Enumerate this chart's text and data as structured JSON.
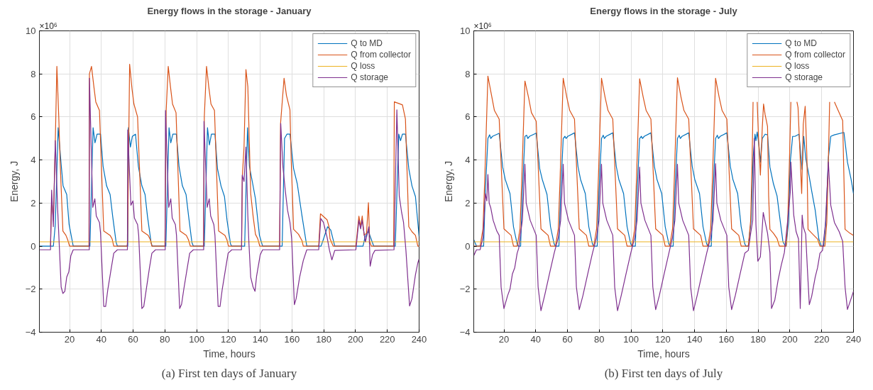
{
  "chart_data": [
    {
      "type": "line",
      "title": "Energy flows in the storage - January",
      "xlabel": "Time, hours",
      "ylabel": "Energy, J",
      "annotations": [
        "×10⁶",
        "(a) First ten days of January"
      ],
      "xlim": [
        1,
        240
      ],
      "xticks": [
        20,
        40,
        60,
        80,
        100,
        120,
        140,
        160,
        180,
        200,
        220,
        240
      ],
      "ylim": [
        -4,
        10
      ],
      "yticks": [
        -4,
        -2,
        0,
        2,
        4,
        6,
        8,
        10
      ],
      "grid": true,
      "legend": "top right",
      "series": [
        {
          "name": "Q to MD",
          "color": "#0072bd",
          "x": [
            1,
            9.8,
            11,
            12.8,
            14.7,
            15.9,
            18.2,
            19.7,
            22.3,
            32.8,
            34.8,
            36,
            37.3,
            39.5,
            41.1,
            43.3,
            45.5,
            47.1,
            49.3,
            50.1,
            56.6,
            57,
            58.3,
            59.5,
            61.5,
            63.3,
            65.5,
            67.5,
            69,
            71.3,
            72,
            80.6,
            82.6,
            83.7,
            85,
            87.2,
            88.9,
            91,
            93.3,
            94.9,
            97,
            97.9,
            104.8,
            106.8,
            108,
            109.3,
            111.5,
            113.1,
            115.3,
            117.5,
            119.1,
            121.3,
            122,
            130.2,
            132,
            133.2,
            135,
            137,
            139.5,
            141.5,
            153.8,
            155.3,
            156.8,
            158.7,
            161,
            163.3,
            166.3,
            169.3,
            178.3,
            182.4,
            184.4,
            186.9,
            204.7,
            205.9,
            208,
            211.4,
            225,
            227.2,
            228.3,
            229.5,
            231.4,
            233.5,
            235.5,
            237.7,
            240
          ],
          "values": [
            0,
            0,
            1.0,
            5.5,
            3.8,
            2.8,
            2.4,
            1.0,
            0,
            0,
            5.5,
            4.8,
            5.2,
            5.2,
            3.7,
            2.8,
            2.4,
            1.4,
            0.17,
            0,
            0,
            5.5,
            4.6,
            5.1,
            5.2,
            3.7,
            2.8,
            2.4,
            1.4,
            0.17,
            0,
            0,
            5.5,
            4.8,
            5.2,
            5.2,
            3.7,
            2.8,
            2.4,
            1.4,
            0.17,
            0,
            0,
            5.5,
            4.7,
            5.2,
            5.2,
            3.6,
            2.8,
            2.3,
            1.2,
            0.1,
            0,
            0,
            5.5,
            3.7,
            3.0,
            2.2,
            0.5,
            0,
            0,
            5.0,
            5.2,
            5.2,
            3.6,
            2.9,
            1.4,
            0,
            0,
            0.9,
            0.75,
            0,
            0,
            0.4,
            0.7,
            0,
            0,
            5.2,
            4.9,
            5.2,
            5.2,
            3.6,
            2.8,
            2.3,
            0.45
          ]
        },
        {
          "name": "Q from collector",
          "color": "#d95319",
          "x": [
            8,
            8.7,
            9.8,
            11,
            12,
            13.2,
            14,
            15.8,
            17.7,
            18.8,
            20,
            32.2,
            32.5,
            33.8,
            35.3,
            36.5,
            38.8,
            41.5,
            45.5,
            46.8,
            47.8,
            56.2,
            56.5,
            57.8,
            59.3,
            60.5,
            62.8,
            65.5,
            69.5,
            70.8,
            71.8,
            80,
            80.8,
            82.1,
            83.5,
            84.8,
            87,
            89.5,
            93.5,
            94.8,
            96,
            104.3,
            104.8,
            106.2,
            107.6,
            109,
            111.2,
            113.8,
            117.8,
            119,
            120,
            128.3,
            128.7,
            129.8,
            131,
            132.2,
            134,
            135.5,
            137,
            138.5,
            139.7,
            152.2,
            152.8,
            155,
            156.5,
            158.7,
            159.5,
            161,
            164.1,
            166.3,
            167.1,
            176.8,
            177.9,
            182.1,
            183.3,
            183.9,
            185.9,
            200.2,
            202.1,
            203.2,
            204.2,
            205.4,
            206.9,
            208.1,
            208.9,
            209.9,
            224,
            224.4,
            229.5,
            231.4,
            233.5,
            235.5,
            237.7,
            239.2,
            240
          ],
          "values": [
            0,
            2.2,
            1.2,
            4.8,
            8.35,
            6.0,
            4.0,
            0.7,
            0.5,
            0.3,
            0,
            0,
            8.0,
            8.35,
            7.4,
            6.7,
            6.3,
            0.7,
            0.5,
            0.33,
            0,
            0,
            0.2,
            8.45,
            7.3,
            6.6,
            6.0,
            0.7,
            0.5,
            0.3,
            0,
            0,
            6.3,
            8.35,
            7.4,
            6.6,
            6.2,
            0.7,
            0.5,
            0.3,
            0,
            0,
            6.0,
            8.35,
            7.4,
            6.6,
            6.3,
            0.7,
            0.5,
            0.3,
            0,
            0,
            3.2,
            4.6,
            8.2,
            7.4,
            2.44,
            1.4,
            0.55,
            0.33,
            0,
            0,
            5.7,
            7.8,
            7.0,
            6.33,
            4.0,
            0.78,
            0.55,
            0.25,
            0,
            0,
            1.5,
            1.22,
            0.9,
            0.35,
            0,
            0,
            1.39,
            0.9,
            1.4,
            0.5,
            0.6,
            2.02,
            0.2,
            0,
            0,
            6.7,
            6.56,
            5.9,
            0.9,
            0.67,
            0.5,
            0,
            0
          ]
        },
        {
          "name": "Q loss",
          "color": "#edb120",
          "x": [
            1,
            240
          ],
          "values": [
            0.2,
            0.2
          ]
        },
        {
          "name": "Q storage",
          "color": "#7e2f8e",
          "x": [
            1,
            8,
            8.7,
            9.8,
            11,
            12.5,
            14.7,
            15.8,
            17,
            18.2,
            19.5,
            20.8,
            22.3,
            32.4,
            32.5,
            34.6,
            35.9,
            36.8,
            38.8,
            39.5,
            41.5,
            42.7,
            44.1,
            46.3,
            47.8,
            50.1,
            56.4,
            56.6,
            58.6,
            59.9,
            60.8,
            62.8,
            63.5,
            65.5,
            66.7,
            68.1,
            70.3,
            71.8,
            74.1,
            80.2,
            80.4,
            82.4,
            83.7,
            84.6,
            86.6,
            87.3,
            89.3,
            90.5,
            91.9,
            94.1,
            95.6,
            97.9,
            104.4,
            104.6,
            106.6,
            107.9,
            108.8,
            110.8,
            111.5,
            113.5,
            114.7,
            116.1,
            118.3,
            119.8,
            122.1,
            128.2,
            128.7,
            129.8,
            131,
            132.2,
            132.9,
            134,
            135.5,
            136.7,
            137.7,
            140,
            141.5,
            152.2,
            152.9,
            154.3,
            155.8,
            157.2,
            158.7,
            159.8,
            161.5,
            162.6,
            164.8,
            167.1,
            169.3,
            176.8,
            178.1,
            179.8,
            182.1,
            183.6,
            185.1,
            186.9,
            200.2,
            202.1,
            203.2,
            204.1,
            206.2,
            208.4,
            209.2,
            210.7,
            212.2,
            224.2,
            226,
            227.5,
            229,
            230.2,
            231.7,
            234,
            235.5,
            237.7,
            239.2,
            240
          ],
          "values": [
            -0.17,
            -0.17,
            2.6,
            0.9,
            4.9,
            1.7,
            -1.9,
            -2.2,
            -2.1,
            -1.44,
            -1.2,
            -0.44,
            -0.17,
            -0.17,
            7.8,
            1.8,
            2.2,
            1.4,
            1.1,
            0.6,
            -2.8,
            -2.8,
            -2.0,
            -1.0,
            -0.33,
            -0.17,
            -0.17,
            5.4,
            1.9,
            2.1,
            1.3,
            1.0,
            0.5,
            -2.9,
            -2.8,
            -2.1,
            -1.0,
            -0.33,
            -0.17,
            -0.17,
            6.3,
            1.8,
            2.2,
            1.3,
            1.0,
            0.5,
            -2.9,
            -2.7,
            -2.0,
            -1.0,
            -0.33,
            -0.17,
            -0.17,
            5.8,
            1.8,
            2.2,
            1.4,
            1.0,
            0.5,
            -2.8,
            -2.8,
            -2.0,
            -1.0,
            -0.33,
            -0.17,
            -0.17,
            3.3,
            3.0,
            4.6,
            1.4,
            0.1,
            -1.44,
            -1.9,
            -2.1,
            -1.4,
            -0.4,
            -0.17,
            -0.17,
            5.7,
            3.67,
            2.56,
            1.67,
            1.11,
            0.33,
            -2.72,
            -2.44,
            -1.44,
            -0.67,
            -0.17,
            -0.17,
            1.28,
            1.1,
            0.4,
            -0.2,
            -0.64,
            -0.2,
            -0.17,
            1.2,
            0.8,
            1.2,
            0.2,
            0.9,
            -0.93,
            -0.4,
            -0.2,
            -0.17,
            6.33,
            2.33,
            1.56,
            1.1,
            -0.2,
            -2.78,
            -2.44,
            -1.33,
            -0.78,
            -0.6
          ]
        }
      ]
    },
    {
      "type": "line",
      "title": "Energy flows in the storage - July",
      "xlabel": "Time, hours",
      "ylabel": "Energy, J",
      "annotations": [
        "×10⁶",
        "(b) First ten days of July"
      ],
      "xlim": [
        1,
        240
      ],
      "xticks": [
        20,
        40,
        60,
        80,
        100,
        120,
        140,
        160,
        180,
        200,
        220,
        240
      ],
      "ylim": [
        -4,
        10
      ],
      "yticks": [
        -4,
        -2,
        0,
        2,
        4,
        6,
        8,
        10
      ],
      "grid": true,
      "legend": "top right",
      "series": [
        {
          "name": "Q to MD",
          "color": "#0072bd",
          "x": [
            1,
            2.7,
            7.2,
            8.3,
            9.9,
            11,
            11.7,
            12.8,
            17,
            19.2,
            20.8,
            23.8,
            26,
            28.3,
            29,
            30.5,
            31.6,
            33.2,
            34.3,
            35,
            36.1,
            40.3,
            42.5,
            44.1,
            47.1,
            49.3,
            51.6,
            52.3,
            54.6,
            55.7,
            57.3,
            58.4,
            59.1,
            60.2,
            64.4,
            66.6,
            68.2,
            71.2,
            73.4,
            75.7,
            76.4,
            78.7,
            79.8,
            81.4,
            82.5,
            83.2,
            84.3,
            88.5,
            90.7,
            92.3,
            95.3,
            97.5,
            99.8,
            100.5,
            102.7,
            103.8,
            105.4,
            106.5,
            107.2,
            108.3,
            112.5,
            114.7,
            116.3,
            119.3,
            121.5,
            123.8,
            124.5,
            126.5,
            127.6,
            129.2,
            130.3,
            131,
            132.1,
            136.3,
            138.5,
            140.1,
            143.1,
            145.3,
            147.6,
            148.3,
            150.5,
            151.6,
            153.2,
            154.3,
            155,
            156.1,
            160.3,
            162.5,
            164.1,
            167.1,
            169.3,
            171.6,
            172.3,
            173.8,
            175.6,
            176.8,
            178,
            178.6,
            179.4,
            180.6,
            181.4,
            182.6,
            184.4,
            185.9,
            187.4,
            189.6,
            191.9,
            193.4,
            195.6,
            197.1,
            197.6,
            199.1,
            200.2,
            201.7,
            203.2,
            205.7,
            206.9,
            207.7,
            208.7,
            209.9,
            212.2,
            213.7,
            215.9,
            218.2,
            219.7,
            221.2,
            222.7,
            224.2,
            225.7,
            228,
            234,
            236.2,
            238.5,
            240
          ],
          "values": [
            0.3,
            0,
            0,
            2.56,
            5.0,
            5.17,
            5.0,
            5.1,
            5.24,
            3.67,
            3.1,
            2.44,
            0.9,
            0.1,
            0,
            0,
            2.5,
            5.1,
            5.15,
            5.0,
            5.1,
            5.25,
            3.6,
            3.1,
            2.4,
            0.9,
            0.1,
            0,
            0,
            2.5,
            5.0,
            5.1,
            5.0,
            5.1,
            5.26,
            3.7,
            3.1,
            2.44,
            0.9,
            0.1,
            0,
            0,
            2.5,
            5.0,
            5.15,
            5.0,
            5.1,
            5.26,
            3.7,
            3.1,
            2.44,
            0.9,
            0.1,
            0,
            0,
            2.5,
            5.0,
            5.1,
            5.0,
            5.1,
            5.26,
            3.7,
            3.1,
            2.44,
            0.9,
            0.1,
            0,
            0,
            2.5,
            5.0,
            5.15,
            5.0,
            5.1,
            5.26,
            3.7,
            3.1,
            2.44,
            0.9,
            0.1,
            0,
            0,
            2.5,
            5.0,
            5.15,
            5.0,
            5.1,
            5.26,
            3.7,
            3.1,
            2.44,
            0.9,
            0.1,
            0,
            0,
            1.2,
            4.1,
            5.2,
            4.9,
            5.3,
            4.6,
            3.9,
            5.0,
            5.2,
            5.17,
            3.67,
            2.9,
            2.33,
            1.44,
            0.2,
            0,
            0,
            1.1,
            3.9,
            5.1,
            5.1,
            5.2,
            4.2,
            3.56,
            5.1,
            4.1,
            3.2,
            2.56,
            1.67,
            0.33,
            0,
            0,
            1.2,
            4.1,
            5.1,
            5.17,
            5.28,
            3.9,
            3.1,
            2.44
          ]
        },
        {
          "name": "Q from collector",
          "color": "#d95319",
          "x": [
            1,
            5,
            5.7,
            6.8,
            8,
            9.9,
            12.2,
            14,
            17,
            20,
            24.5,
            26,
            28.3,
            29,
            30.1,
            31.3,
            33.2,
            35.5,
            37.3,
            40.3,
            43.3,
            47.8,
            49.3,
            52.4,
            53.1,
            54.2,
            55.4,
            57.3,
            59.6,
            61.4,
            64.4,
            67.4,
            71.9,
            73.4,
            76.5,
            77.2,
            78.3,
            79.5,
            81.4,
            83.7,
            85.5,
            88.5,
            91.5,
            96,
            97.5,
            100.5,
            101.2,
            102.3,
            103.5,
            105.4,
            107.7,
            109.5,
            112.5,
            115.5,
            120,
            121.5,
            124.3,
            125,
            126.1,
            127.3,
            129.2,
            131.5,
            133.3,
            136.3,
            139.3,
            143.8,
            145.3,
            148.3,
            149,
            150.1,
            151.3,
            153.2,
            155.5,
            157.3,
            160.3,
            163.3,
            167.8,
            169.3,
            173.8,
            175.3,
            176.2,
            176.8,
            178,
            179.4,
            180.2,
            181.4,
            182.6,
            183.4,
            184.4,
            185.9,
            186.6,
            187.4,
            189.6,
            191.9,
            193.4,
            197.6,
            198.6,
            199.7,
            200.6,
            202,
            204.4,
            205.1,
            206.5,
            207.4,
            208.4,
            209.6,
            210.7,
            211.4,
            214.4,
            217.4,
            218.9,
            222,
            223.2,
            224.2,
            225,
            226.5,
            228,
            230.2,
            233.2,
            234.7,
            237.7,
            240
          ],
          "values": [
            0,
            0,
            0.3,
            0.8,
            3.3,
            7.9,
            7.0,
            6.3,
            5.9,
            0.8,
            0.5,
            0,
            0,
            0.3,
            0.8,
            3.3,
            7.67,
            6.9,
            6.2,
            5.8,
            0.8,
            0.5,
            0,
            0,
            0.3,
            0.8,
            3.3,
            7.8,
            6.9,
            6.3,
            5.9,
            0.8,
            0.5,
            0,
            0,
            0.3,
            0.8,
            3.3,
            7.8,
            6.9,
            6.3,
            5.9,
            0.8,
            0.5,
            0,
            0,
            0.3,
            0.8,
            3.3,
            7.77,
            6.9,
            6.3,
            5.9,
            0.8,
            0.5,
            0,
            0,
            0.3,
            0.8,
            3.3,
            7.82,
            6.9,
            6.3,
            5.9,
            0.8,
            0.5,
            0,
            0,
            0.3,
            0.8,
            3.3,
            7.8,
            6.9,
            6.3,
            5.9,
            0.8,
            0.5,
            0,
            0,
            1.2,
            4.0,
            6.7,
            null,
            6.7,
            5.1,
            3.3,
            5.5,
            6.6,
            6.1,
            5.56,
            2.33,
            0.78,
            0.6,
            0.35,
            0,
            0,
            1.1,
            4.0,
            6.7,
            null,
            6.7,
            6.44,
            4.0,
            2.44,
            5.67,
            6.5,
            4.1,
            0.78,
            0.55,
            0.33,
            0,
            0,
            1.1,
            4.0,
            6.7,
            null,
            6.7,
            6.33,
            5.83,
            0.78,
            0.6,
            0.5
          ]
        },
        {
          "name": "Q loss",
          "color": "#edb120",
          "x": [
            1,
            240
          ],
          "values": [
            0.2,
            0.2
          ]
        },
        {
          "name": "Q storage",
          "color": "#7e2f8e",
          "x": [
            1,
            2.7,
            5,
            6.8,
            8.3,
            9.2,
            9.9,
            10.7,
            11.7,
            13.2,
            15.5,
            17,
            18.2,
            20,
            22.3,
            23.8,
            25.3,
            26.8,
            28.3,
            29.3,
            30.1,
            31.6,
            33.2,
            34,
            36.5,
            40.3,
            41.5,
            43.3,
            45.6,
            48.6,
            51.6,
            54.2,
            55.7,
            57.3,
            58.1,
            60.6,
            64.4,
            65.6,
            67.4,
            69.7,
            72.7,
            75.7,
            78.3,
            79.8,
            81.4,
            82.2,
            84.7,
            88.5,
            89.7,
            91.5,
            93.8,
            96.8,
            99.8,
            102.3,
            103.8,
            105.4,
            106.2,
            108.7,
            112.5,
            113.7,
            115.5,
            117.8,
            120.8,
            123.8,
            126.1,
            127.6,
            129.2,
            130,
            132.5,
            136.3,
            137.5,
            139.3,
            141.6,
            144.6,
            147.6,
            150.1,
            151.6,
            153.2,
            154,
            156.5,
            160.3,
            161.5,
            163.3,
            165.6,
            168.6,
            171.6,
            173.8,
            175.3,
            176.6,
            177.6,
            178.6,
            179.8,
            181.4,
            183.2,
            185.9,
            187.4,
            188.4,
            190.5,
            192.5,
            194.5,
            196.5,
            198.6,
            200.2,
            200.6,
            202.4,
            203.9,
            205.4,
            206.5,
            207.7,
            208.4,
            209.9,
            211.1,
            212.2,
            213.7,
            215.9,
            217.4,
            218.9,
            220.5,
            222.3,
            224.2,
            225.7,
            228,
            231,
            233.2,
            234.7,
            236.2,
            238.5,
            240
          ],
          "values": [
            -0.44,
            -0.17,
            -0.17,
            0.4,
            2.44,
            2.1,
            3.33,
            2.0,
            1.78,
            1.2,
            0.7,
            0.5,
            -1.9,
            -2.9,
            -2.3,
            -2.0,
            -1.3,
            -1.0,
            -0.33,
            -0.1,
            0.4,
            1.2,
            3.8,
            2.0,
            1.2,
            0.5,
            -1.9,
            -3.0,
            -2.3,
            -1.3,
            -0.33,
            0.4,
            1.2,
            3.8,
            2.0,
            1.2,
            0.5,
            -1.9,
            -2.95,
            -2.3,
            -1.3,
            -0.33,
            0.4,
            1.2,
            3.8,
            2.0,
            1.2,
            0.5,
            -1.9,
            -3.0,
            -2.3,
            -1.3,
            -0.33,
            0.4,
            1.2,
            3.67,
            2.0,
            1.2,
            0.5,
            -1.9,
            -2.95,
            -2.3,
            -1.3,
            -0.33,
            0.4,
            1.2,
            3.8,
            2.0,
            1.2,
            0.5,
            -1.9,
            -3.0,
            -2.3,
            -1.3,
            -0.33,
            0.4,
            1.2,
            3.83,
            2.0,
            1.2,
            0.5,
            -1.9,
            -2.95,
            -2.3,
            -1.3,
            -0.33,
            -0.2,
            0.6,
            1.2,
            5.0,
            1.0,
            -0.7,
            -0.5,
            1.56,
            0.6,
            -0.3,
            -2.9,
            -2.5,
            -1.6,
            -0.9,
            -0.3,
            1.2,
            2.5,
            3.9,
            1.44,
            0.67,
            0.33,
            -2.9,
            1.44,
            0.89,
            0.56,
            -1.22,
            -2.72,
            -2.33,
            -1.44,
            -1.0,
            -0.33,
            -0.2,
            1.0,
            3.9,
            1.9,
            1.1,
            0.67,
            0.22,
            -1.9,
            -2.94,
            -2.44,
            -2.1
          ]
        }
      ]
    }
  ]
}
